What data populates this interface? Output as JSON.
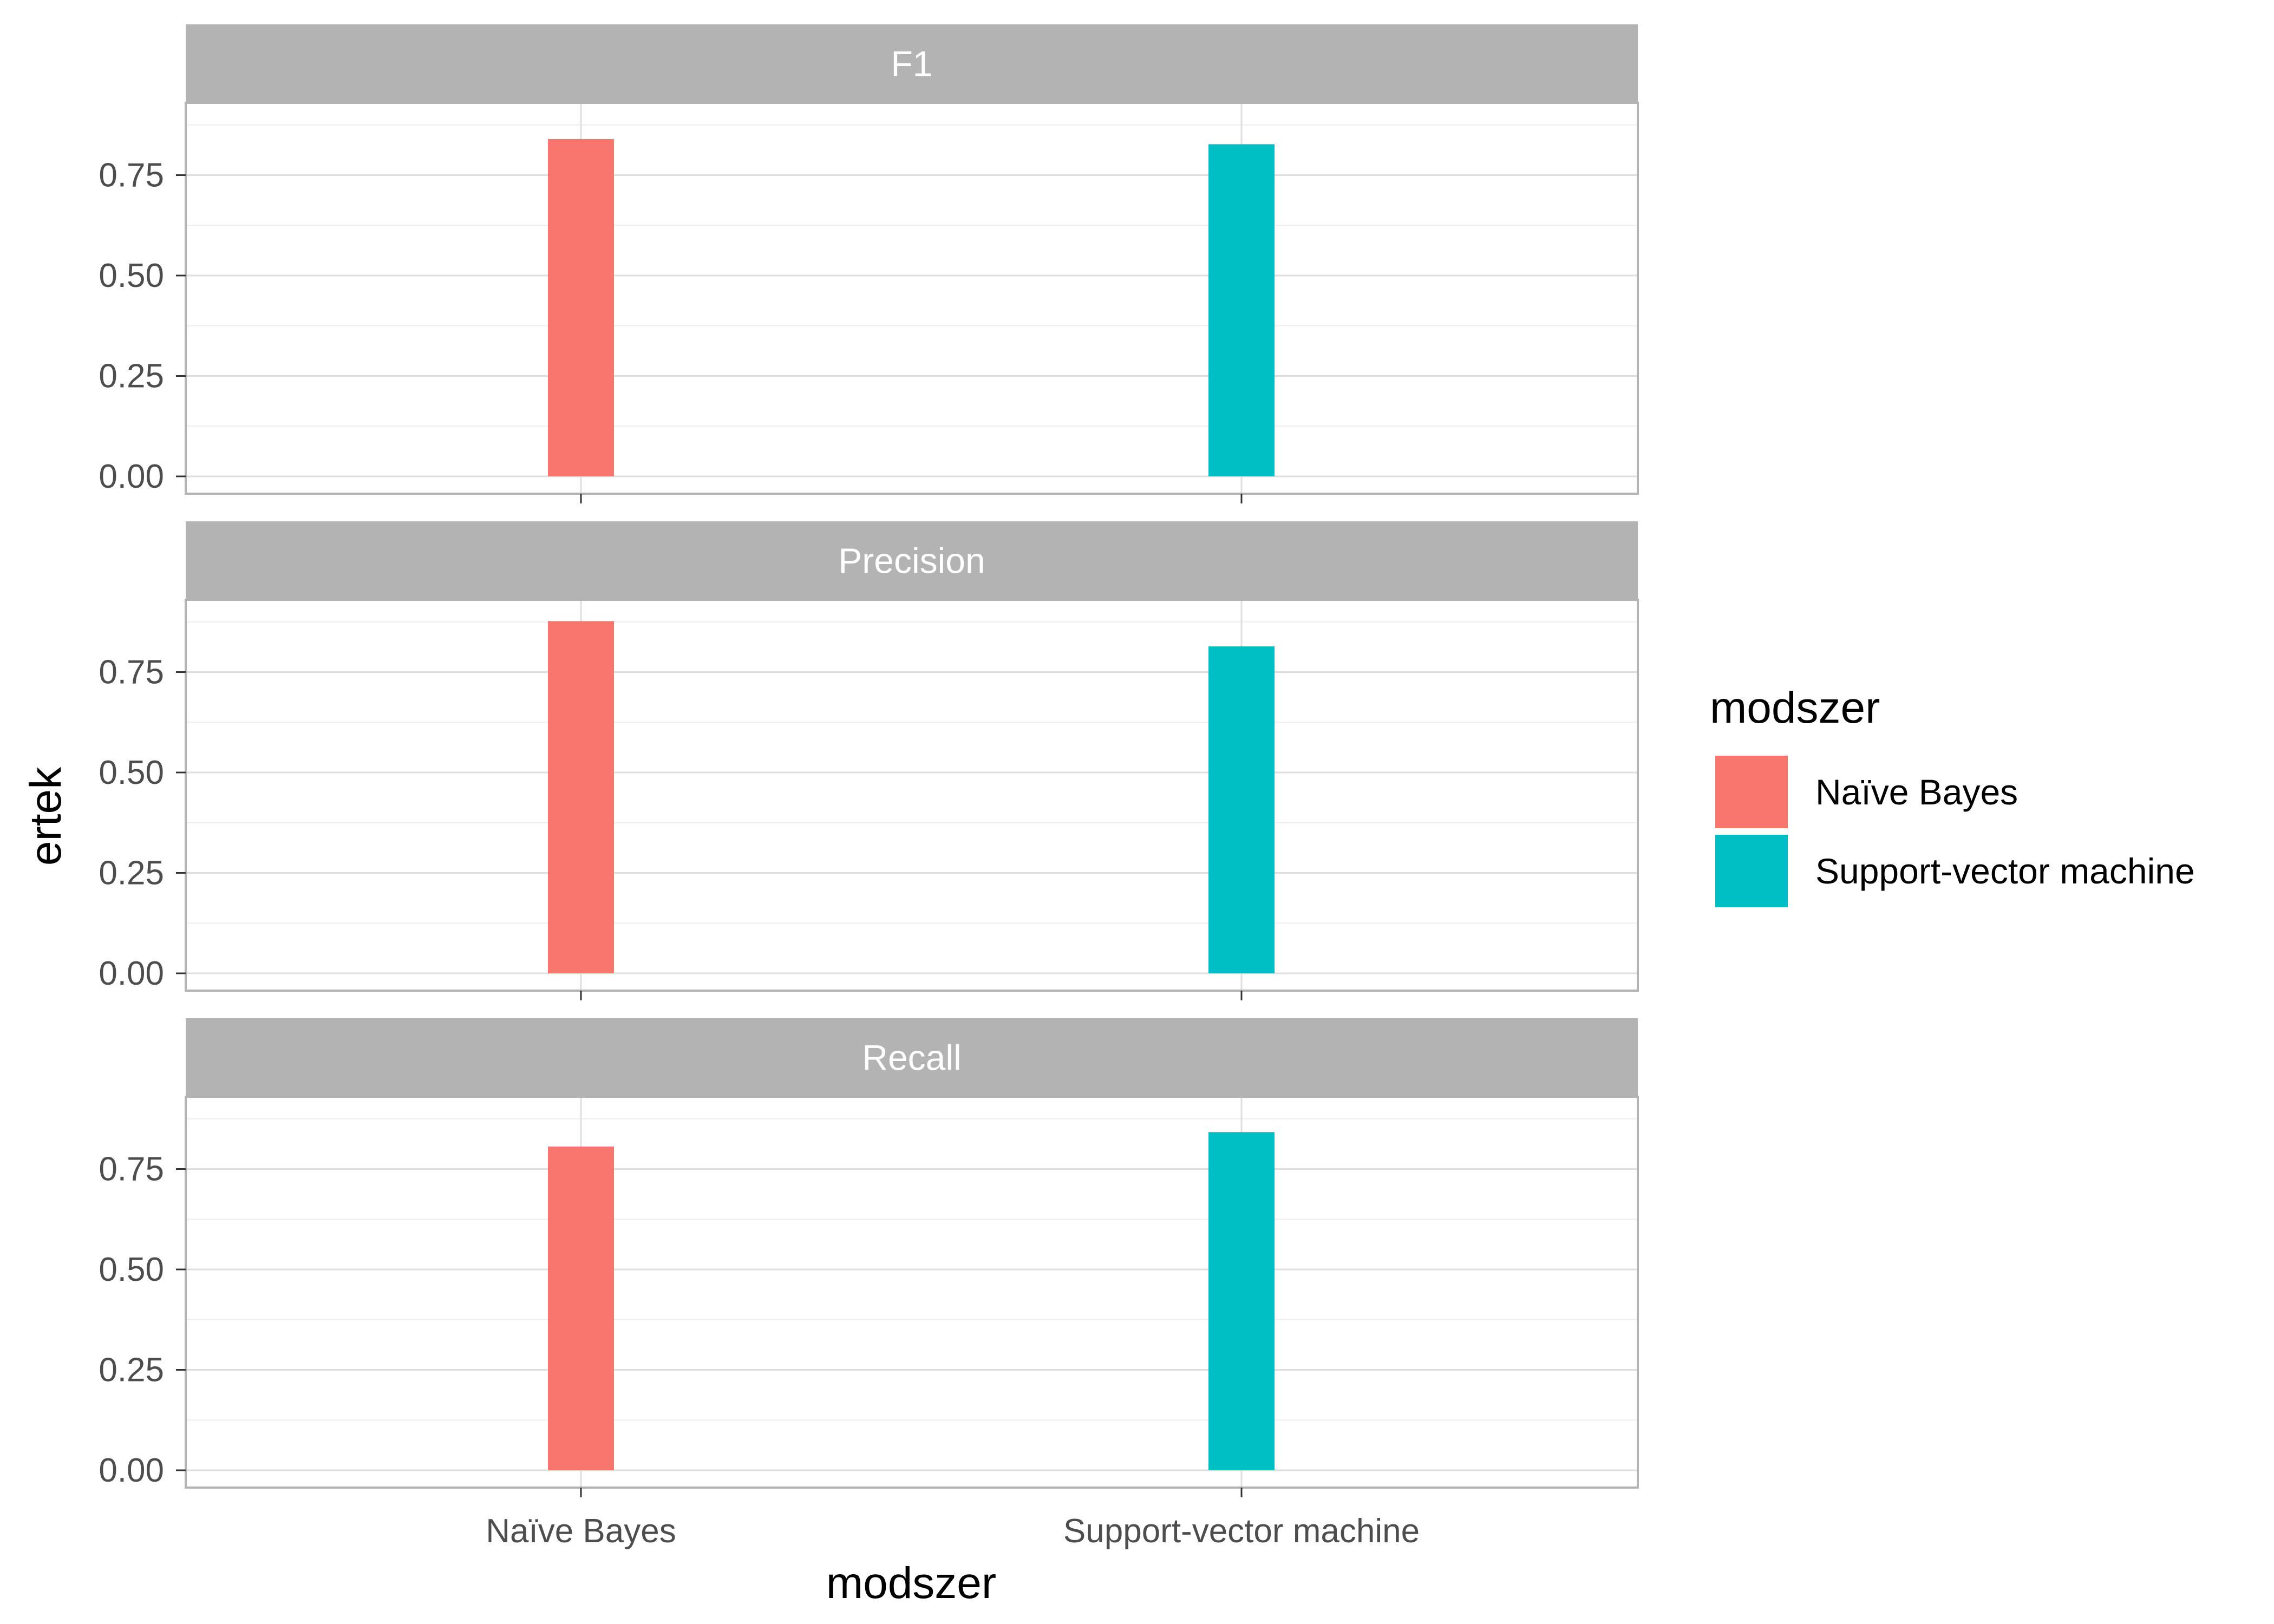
{
  "chart_data": {
    "type": "bar",
    "x_label": "modszer",
    "y_label": "ertek",
    "categories": [
      "Naïve Bayes",
      "Support-vector machine"
    ],
    "ylim": [
      0,
      0.93
    ],
    "y_ticks": [
      0,
      0.25,
      0.5,
      0.75
    ],
    "y_tick_labels": [
      "0.00",
      "0.25",
      "0.50",
      "0.75"
    ],
    "grid": true,
    "legend": {
      "title": "modszer",
      "position": "right",
      "items": [
        {
          "label": "Naïve Bayes",
          "color": "#F8766D"
        },
        {
          "label": "Support-vector machine",
          "color": "#00BFC4"
        }
      ]
    },
    "facets": [
      {
        "name": "F1",
        "values": [
          0.84,
          0.827
        ]
      },
      {
        "name": "Precision",
        "values": [
          0.877,
          0.814
        ]
      },
      {
        "name": "Recall",
        "values": [
          0.806,
          0.842
        ]
      }
    ]
  },
  "colors": {
    "strip_background": "#B3B3B3",
    "panel_border": "#B3B3B3",
    "grid_major": "#DEDEDE",
    "grid_minor": "#EDEDED"
  }
}
